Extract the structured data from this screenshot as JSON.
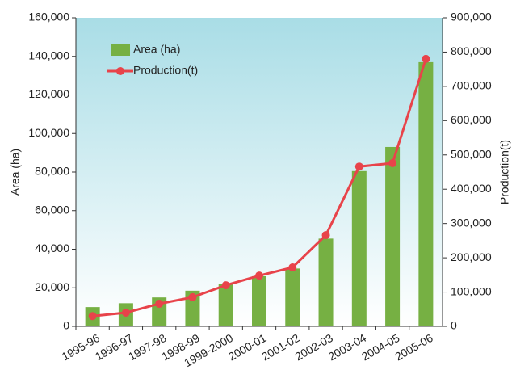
{
  "chart_data": {
    "type": "bar",
    "categories": [
      "1995-96",
      "1996-97",
      "1997-98",
      "1998-99",
      "1999-2000",
      "2000-01",
      "2001-02",
      "2002-03",
      "2003-04",
      "2004-05",
      "2005-06"
    ],
    "series": [
      {
        "name": "Area (ha)",
        "type": "bar",
        "color": "#76b043",
        "values": [
          10000,
          12000,
          15000,
          18500,
          22000,
          26000,
          30000,
          45500,
          80500,
          93000,
          137000
        ]
      },
      {
        "name": "Production(t)",
        "type": "line",
        "axis": "y2",
        "color": "#e8434a",
        "values": [
          30000,
          40000,
          66000,
          85000,
          120000,
          148000,
          172000,
          266000,
          466000,
          476000,
          780000
        ]
      }
    ],
    "ylabel": "Area (ha)",
    "y2label": "Production(t)",
    "ylim": [
      0,
      160000
    ],
    "yticks": [
      0,
      {
        "value": 20000,
        "label": "20,000"
      },
      {
        "value": 40000,
        "label": "40,000"
      },
      {
        "value": 60000,
        "label": "60,000"
      },
      {
        "value": 80000,
        "label": "80,000"
      },
      {
        "value": 100000,
        "label": "100,000"
      },
      {
        "value": 120000,
        "label": "120,000"
      },
      {
        "value": 140000,
        "label": "140,000"
      },
      {
        "value": 160000,
        "label": "160,000"
      }
    ],
    "y2lim": [
      0,
      900000
    ],
    "y2ticks": [
      0,
      {
        "value": 100000,
        "label": "100,000"
      },
      {
        "value": 200000,
        "label": "200,000"
      },
      {
        "value": 300000,
        "label": "300,000"
      },
      {
        "value": 400000,
        "label": "400,000"
      },
      {
        "value": 500000,
        "label": "500,000"
      },
      {
        "value": 600000,
        "label": "600,000"
      },
      {
        "value": 700000,
        "label": "700,000"
      },
      {
        "value": 800000,
        "label": "800,000"
      },
      {
        "value": 900000,
        "label": "900,000"
      }
    ],
    "legend": "upper left"
  }
}
